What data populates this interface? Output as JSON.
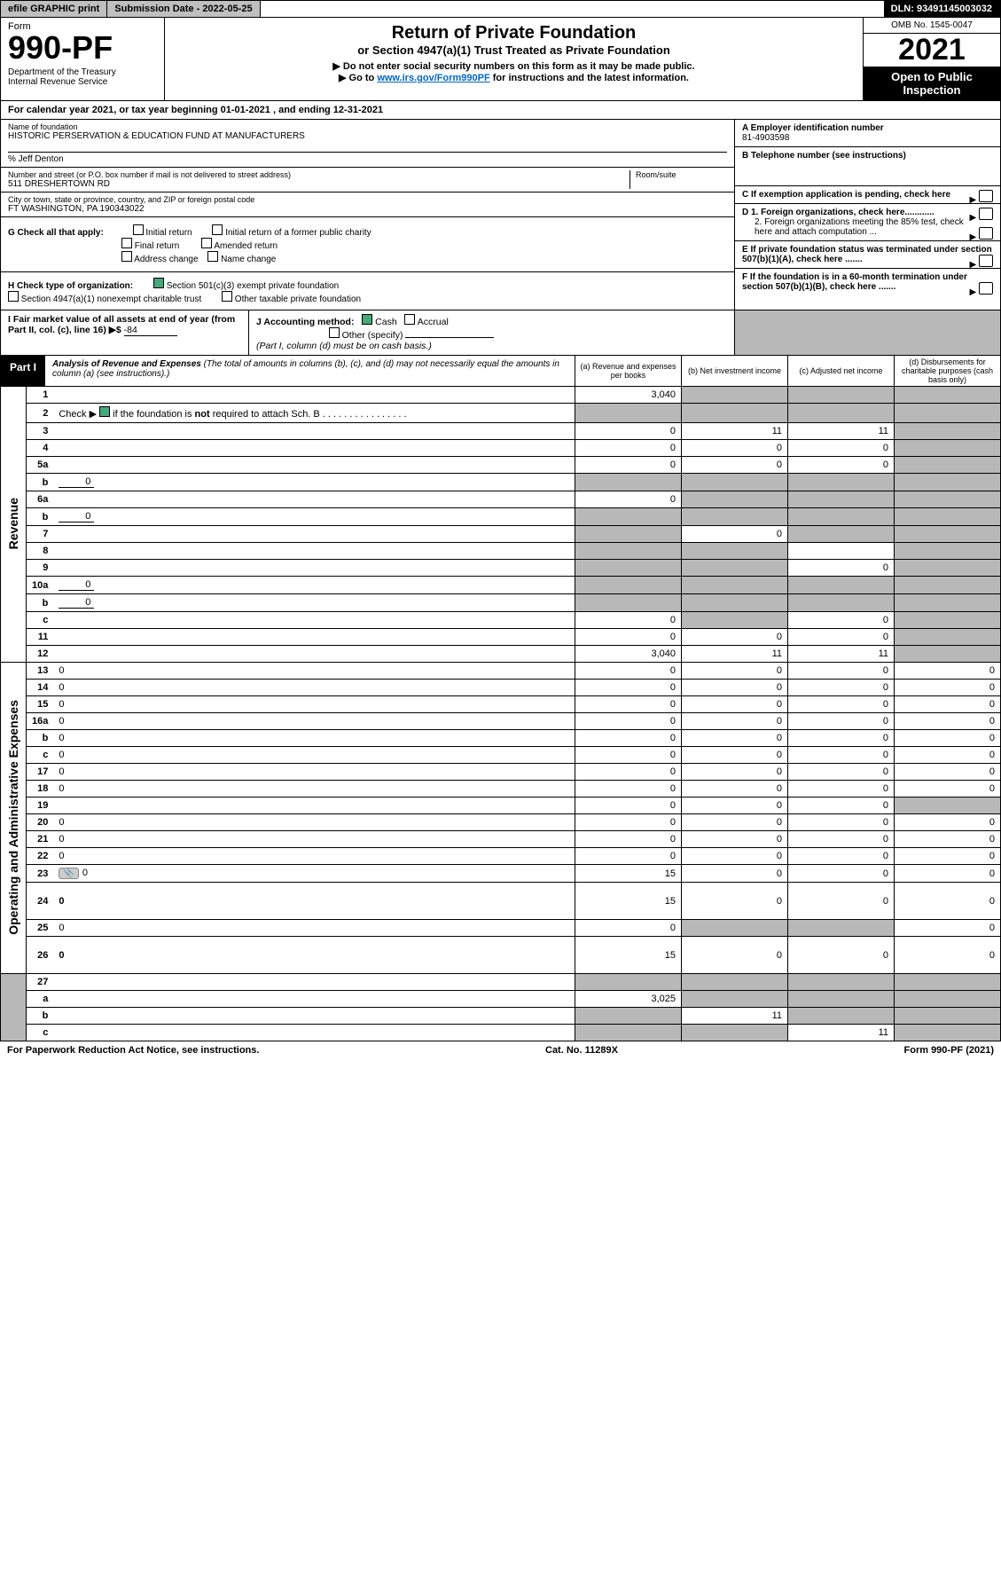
{
  "topbar": {
    "efile": "efile GRAPHIC print",
    "submission_label": "Submission Date - 2022-05-25",
    "dln": "DLN: 93491145003032"
  },
  "header": {
    "form_label": "Form",
    "form_number": "990-PF",
    "dept": "Department of the Treasury\nInternal Revenue Service",
    "title": "Return of Private Foundation",
    "subtitle": "or Section 4947(a)(1) Trust Treated as Private Foundation",
    "note1": "▶ Do not enter social security numbers on this form as it may be made public.",
    "note2_pre": "▶ Go to ",
    "note2_link": "www.irs.gov/Form990PF",
    "note2_post": " for instructions and the latest information.",
    "omb": "OMB No. 1545-0047",
    "year": "2021",
    "inspect": "Open to Public Inspection"
  },
  "calyear": "For calendar year 2021, or tax year beginning 01-01-2021                       , and ending 12-31-2021",
  "info": {
    "name_lbl": "Name of foundation",
    "name": "HISTORIC PERSERVATION & EDUCATION FUND AT MANUFACTURERS",
    "co_lbl": "% Jeff Denton",
    "addr_lbl": "Number and street (or P.O. box number if mail is not delivered to street address)",
    "addr": "511 DRESHERTOWN RD",
    "room_lbl": "Room/suite",
    "city_lbl": "City or town, state or province, country, and ZIP or foreign postal code",
    "city": "FT WASHINGTON, PA  190343022",
    "a_lbl": "A Employer identification number",
    "a_val": "81-4903598",
    "b_lbl": "B Telephone number (see instructions)",
    "c_lbl": "C If exemption application is pending, check here",
    "d1_lbl": "D 1. Foreign organizations, check here............",
    "d2_lbl": "2. Foreign organizations meeting the 85% test, check here and attach computation ...",
    "e_lbl": "E  If private foundation status was terminated under section 507(b)(1)(A), check here .......",
    "f_lbl": "F  If the foundation is in a 60-month termination under section 507(b)(1)(B), check here .......",
    "g_lbl": "G Check all that apply:",
    "g_opts": [
      "Initial return",
      "Initial return of a former public charity",
      "Final return",
      "Amended return",
      "Address change",
      "Name change"
    ],
    "h_lbl": "H Check type of organization:",
    "h1": "Section 501(c)(3) exempt private foundation",
    "h2": "Section 4947(a)(1) nonexempt charitable trust",
    "h3": "Other taxable private foundation",
    "i_lbl": "I Fair market value of all assets at end of year (from Part II, col. (c), line 16) ▶$",
    "i_val": "-84",
    "j_lbl": "J Accounting method:",
    "j_cash": "Cash",
    "j_accrual": "Accrual",
    "j_other": "Other (specify)",
    "j_note": "(Part I, column (d) must be on cash basis.)"
  },
  "part1": {
    "tag": "Part I",
    "title": "Analysis of Revenue and Expenses",
    "note": " (The total of amounts in columns (b), (c), and (d) may not necessarily equal the amounts in column (a) (see instructions).)",
    "col_a": "(a)  Revenue and expenses per books",
    "col_b": "(b)  Net investment income",
    "col_c": "(c)  Adjusted net income",
    "col_d": "(d)  Disbursements for charitable purposes (cash basis only)"
  },
  "sidelabels": {
    "revenue": "Revenue",
    "expenses": "Operating and Administrative Expenses"
  },
  "rows": [
    {
      "n": "1",
      "d": "",
      "a": "3,040",
      "b": "",
      "c": "",
      "gb": true,
      "gc": true,
      "gd": true
    },
    {
      "n": "2",
      "d": "",
      "a": "",
      "b": "",
      "c": "",
      "ga": true,
      "gb": true,
      "gc": true,
      "gd": true,
      "html_d": "Check ▶ <span class='chk-box checked'></span> if the foundation is <b>not</b> required to attach Sch. B  .  .  .  .  .  .  .  .  .  .  .  .  .  .  .  ."
    },
    {
      "n": "3",
      "d": "",
      "a": "0",
      "b": "11",
      "c": "11",
      "gd": true
    },
    {
      "n": "4",
      "d": "",
      "a": "0",
      "b": "0",
      "c": "0",
      "gd": true
    },
    {
      "n": "5a",
      "d": "",
      "a": "0",
      "b": "0",
      "c": "0",
      "gd": true
    },
    {
      "n": "b",
      "d": "",
      "mini": "0",
      "a": "",
      "b": "",
      "c": "",
      "ga": true,
      "gb": true,
      "gc": true,
      "gd": true
    },
    {
      "n": "6a",
      "d": "",
      "a": "0",
      "b": "",
      "c": "",
      "gb": true,
      "gc": true,
      "gd": true
    },
    {
      "n": "b",
      "d": "",
      "mini": "0",
      "a": "",
      "b": "",
      "c": "",
      "ga": true,
      "gb": true,
      "gc": true,
      "gd": true
    },
    {
      "n": "7",
      "d": "",
      "a": "",
      "b": "0",
      "c": "",
      "ga": true,
      "gc": true,
      "gd": true
    },
    {
      "n": "8",
      "d": "",
      "a": "",
      "b": "",
      "c": "",
      "ga": true,
      "gb": true,
      "gd": true
    },
    {
      "n": "9",
      "d": "",
      "a": "",
      "b": "",
      "c": "0",
      "ga": true,
      "gb": true,
      "gd": true
    },
    {
      "n": "10a",
      "d": "",
      "mini": "0",
      "a": "",
      "b": "",
      "c": "",
      "ga": true,
      "gb": true,
      "gc": true,
      "gd": true
    },
    {
      "n": "b",
      "d": "",
      "mini": "0",
      "a": "",
      "b": "",
      "c": "",
      "ga": true,
      "gb": true,
      "gc": true,
      "gd": true
    },
    {
      "n": "c",
      "d": "",
      "a": "0",
      "b": "",
      "c": "0",
      "gb": true,
      "gd": true
    },
    {
      "n": "11",
      "d": "",
      "a": "0",
      "b": "0",
      "c": "0",
      "gd": true
    },
    {
      "n": "12",
      "d": "",
      "a": "3,040",
      "b": "11",
      "c": "11",
      "gd": true,
      "bold": true
    },
    {
      "n": "13",
      "d": "0",
      "a": "0",
      "b": "0",
      "c": "0",
      "sec": "exp"
    },
    {
      "n": "14",
      "d": "0",
      "a": "0",
      "b": "0",
      "c": "0"
    },
    {
      "n": "15",
      "d": "0",
      "a": "0",
      "b": "0",
      "c": "0"
    },
    {
      "n": "16a",
      "d": "0",
      "a": "0",
      "b": "0",
      "c": "0"
    },
    {
      "n": "b",
      "d": "0",
      "a": "0",
      "b": "0",
      "c": "0"
    },
    {
      "n": "c",
      "d": "0",
      "a": "0",
      "b": "0",
      "c": "0"
    },
    {
      "n": "17",
      "d": "0",
      "a": "0",
      "b": "0",
      "c": "0"
    },
    {
      "n": "18",
      "d": "0",
      "a": "0",
      "b": "0",
      "c": "0"
    },
    {
      "n": "19",
      "d": "",
      "a": "0",
      "b": "0",
      "c": "0",
      "gd": true
    },
    {
      "n": "20",
      "d": "0",
      "a": "0",
      "b": "0",
      "c": "0"
    },
    {
      "n": "21",
      "d": "0",
      "a": "0",
      "b": "0",
      "c": "0"
    },
    {
      "n": "22",
      "d": "0",
      "a": "0",
      "b": "0",
      "c": "0"
    },
    {
      "n": "23",
      "d": "0",
      "a": "15",
      "b": "0",
      "c": "0",
      "icon": true
    },
    {
      "n": "24",
      "d": "0",
      "a": "15",
      "b": "0",
      "c": "0",
      "bold": true,
      "tall": true
    },
    {
      "n": "25",
      "d": "0",
      "a": "0",
      "b": "",
      "c": "",
      "gb": true,
      "gc": true
    },
    {
      "n": "26",
      "d": "0",
      "a": "15",
      "b": "0",
      "c": "0",
      "bold": true,
      "tall": true
    },
    {
      "n": "27",
      "d": "",
      "a": "",
      "b": "",
      "c": "",
      "ga": true,
      "gb": true,
      "gc": true,
      "gd": true,
      "sec": "net"
    },
    {
      "n": "a",
      "d": "",
      "a": "3,025",
      "b": "",
      "c": "",
      "gb": true,
      "gc": true,
      "gd": true,
      "bold": true
    },
    {
      "n": "b",
      "d": "",
      "a": "",
      "b": "11",
      "c": "",
      "ga": true,
      "gc": true,
      "gd": true,
      "bold": true
    },
    {
      "n": "c",
      "d": "",
      "a": "",
      "b": "",
      "c": "11",
      "ga": true,
      "gb": true,
      "gd": true,
      "bold": true
    }
  ],
  "footer": {
    "left": "For Paperwork Reduction Act Notice, see instructions.",
    "mid": "Cat. No. 11289X",
    "right": "Form 990-PF (2021)"
  },
  "colors": {
    "link": "#0066cc",
    "check_green": "#4a7a3a",
    "grey_cell": "#b8b8b8",
    "btn_grey": "#bfbfbf"
  }
}
